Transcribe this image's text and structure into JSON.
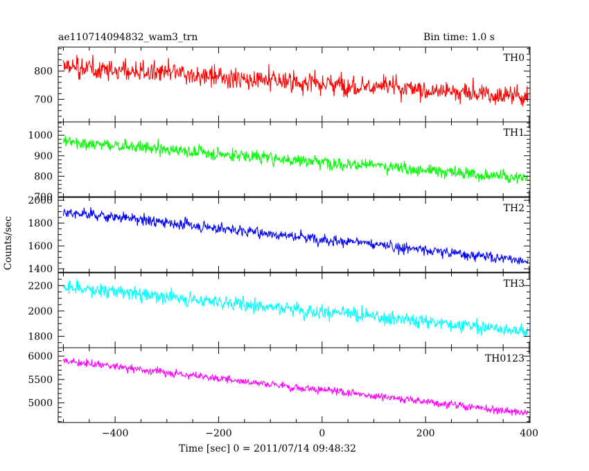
{
  "title": "ae110714094832_wam3_trn",
  "bin_time": "Bin time: 1.0 s",
  "xlabel": "Time [sec] 0 = 2011/07/14 09:48:32",
  "ylabel": "Counts/sec",
  "chart_data": {
    "type": "line",
    "x_range": [
      -510,
      402
    ],
    "x_ticks": [
      -400,
      -200,
      0,
      200,
      400
    ],
    "x_minor_step": 50,
    "series": [
      {
        "name": "TH0",
        "color": "#ff0000",
        "ylim": [
          620,
          885
        ],
        "y_ticks": [
          700,
          800
        ],
        "y_minor_step": 20,
        "trend_start": 815,
        "trend_end": 710,
        "noise": 32,
        "min_clip": 620,
        "max_clip": 885
      },
      {
        "name": "TH1",
        "color": "#00ff00",
        "ylim": [
          700,
          1065
        ],
        "y_ticks": [
          700,
          800,
          900,
          1000
        ],
        "y_minor_step": 20,
        "trend_start": 970,
        "trend_end": 790,
        "noise": 28,
        "min_clip": 700,
        "max_clip": 1065
      },
      {
        "name": "TH2",
        "color": "#0000ff",
        "ylim": [
          1370,
          2025
        ],
        "y_ticks": [
          1400,
          1600,
          1800,
          2000
        ],
        "y_minor_step": 50,
        "trend_start": 1900,
        "trend_end": 1470,
        "noise": 42,
        "min_clip": 1370,
        "max_clip": 2025
      },
      {
        "name": "TH3",
        "color": "#00ffff",
        "ylim": [
          1710,
          2300
        ],
        "y_ticks": [
          1800,
          2000,
          2200
        ],
        "y_minor_step": 50,
        "trend_start": 2190,
        "trend_end": 1840,
        "noise": 48,
        "min_clip": 1710,
        "max_clip": 2300
      },
      {
        "name": "TH0123",
        "color": "#ff00ff",
        "ylim": [
          4580,
          6180
        ],
        "y_ticks": [
          5000,
          5500,
          6000
        ],
        "y_minor_step": 100,
        "trend_start": 5900,
        "trend_end": 4780,
        "noise": 70,
        "min_clip": 4580,
        "max_clip": 6180
      }
    ]
  }
}
